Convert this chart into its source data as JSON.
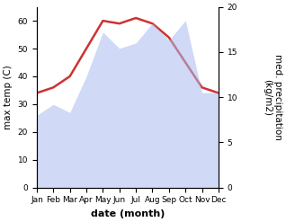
{
  "months": [
    "Jan",
    "Feb",
    "Mar",
    "Apr",
    "May",
    "Jun",
    "Jul",
    "Aug",
    "Sep",
    "Oct",
    "Nov",
    "Dec"
  ],
  "temp_data": [
    34,
    36,
    40,
    50,
    60,
    59,
    61,
    59,
    54,
    45,
    36,
    34
  ],
  "precip_data": [
    8.0,
    9.2,
    8.3,
    12.3,
    17.2,
    15.4,
    16.0,
    18.2,
    16.3,
    18.5,
    10.5,
    10.5
  ],
  "temp_color": "#cc3333",
  "precip_fill_color": "#aabbee",
  "precip_fill_alpha": 0.55,
  "left_ylim": [
    0,
    65
  ],
  "right_ylim": [
    0,
    20
  ],
  "left_yticks": [
    0,
    10,
    20,
    30,
    40,
    50,
    60
  ],
  "right_yticks": [
    0,
    5,
    10,
    15,
    20
  ],
  "xlabel": "date (month)",
  "ylabel_left": "max temp (C)",
  "ylabel_right": "med. precipitation\n(kg/m2)",
  "bg_color": "#ffffff",
  "tick_fontsize": 6.5,
  "label_fontsize": 7.5,
  "xlabel_fontsize": 8
}
